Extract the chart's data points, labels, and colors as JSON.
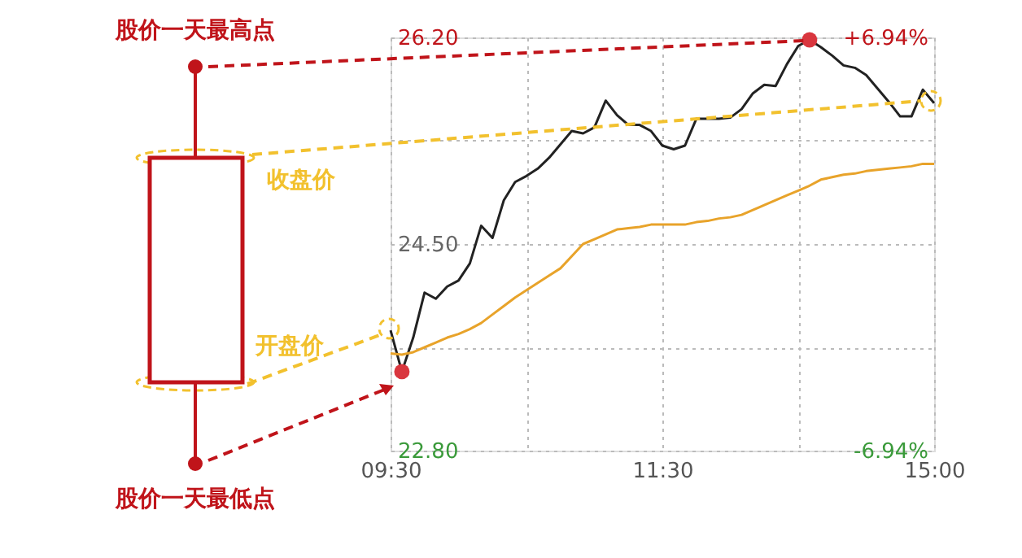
{
  "chart_data": [
    {
      "type": "other",
      "annotations": [
        "股价一天最高点",
        "收盘价",
        "开盘价",
        "股价一天最低点"
      ]
    },
    {
      "type": "line",
      "categories": [
        "09:30",
        null,
        null,
        null,
        null,
        null,
        null,
        null,
        null,
        null,
        null,
        null,
        null,
        null,
        null,
        null,
        null,
        null,
        null,
        null,
        null,
        null,
        null,
        null,
        "11:30",
        null,
        null,
        null,
        null,
        null,
        null,
        null,
        null,
        null,
        null,
        null,
        null,
        null,
        null,
        null,
        null,
        null,
        null,
        null,
        null,
        null,
        null,
        null,
        "15:00"
      ],
      "ylim": [
        22.8,
        26.2
      ],
      "yticks": [
        {
          "value": 22.8,
          "label": "22.80"
        },
        {
          "value": 23.65,
          "label": null
        },
        {
          "value": 24.5,
          "label": "24.50"
        },
        {
          "value": 25.35,
          "label": null
        },
        {
          "value": 26.2,
          "label": "26.20"
        }
      ],
      "y2lim": [
        -6.94,
        6.94
      ],
      "y2ticks": [
        {
          "value": -6.94,
          "label": "-6.94%"
        },
        {
          "value": 6.94,
          "label": "+6.94%"
        }
      ],
      "grid": true,
      "series": [
        {
          "color": "#222222",
          "values": [
            23.79,
            23.45,
            23.73,
            24.1,
            24.05,
            24.15,
            24.2,
            24.34,
            24.65,
            24.55,
            24.86,
            25.01,
            25.06,
            25.12,
            25.21,
            25.32,
            25.43,
            25.41,
            25.46,
            25.68,
            25.56,
            25.48,
            25.48,
            25.43,
            25.31,
            25.28,
            25.31,
            25.53,
            25.53,
            25.53,
            25.54,
            25.61,
            25.74,
            25.81,
            25.8,
            25.98,
            26.13,
            26.18,
            26.12,
            26.05,
            25.97,
            25.95,
            25.89,
            25.78,
            25.67,
            25.55,
            25.55,
            25.77,
            25.66
          ]
        },
        {
          "color": "#e8a32a",
          "values": [
            23.6,
            23.59,
            23.61,
            23.65,
            23.69,
            23.73,
            23.76,
            23.8,
            23.85,
            23.92,
            23.99,
            24.06,
            24.12,
            24.18,
            24.24,
            24.3,
            24.4,
            24.5,
            24.54,
            24.58,
            24.62,
            24.63,
            24.64,
            24.66,
            24.66,
            24.66,
            24.66,
            24.68,
            24.69,
            24.71,
            24.72,
            24.74,
            24.78,
            24.82,
            24.86,
            24.9,
            24.94,
            24.98,
            25.03,
            25.05,
            25.07,
            25.08,
            25.1,
            25.11,
            25.12,
            25.13,
            25.14,
            25.16,
            25.16
          ]
        },
        {
          "type": "scatter",
          "color": "#d9363e",
          "values": [
            null,
            23.45,
            null,
            null,
            null,
            null,
            null,
            null,
            null,
            null,
            null,
            null,
            null,
            null,
            null,
            null,
            null,
            null,
            null,
            null,
            null,
            null,
            null,
            null,
            null,
            null,
            null,
            null,
            null,
            null,
            null,
            null,
            null,
            null,
            null,
            null,
            null,
            26.18,
            null,
            null,
            null,
            null,
            null,
            null,
            null,
            null,
            null,
            null,
            null
          ]
        }
      ]
    }
  ]
}
